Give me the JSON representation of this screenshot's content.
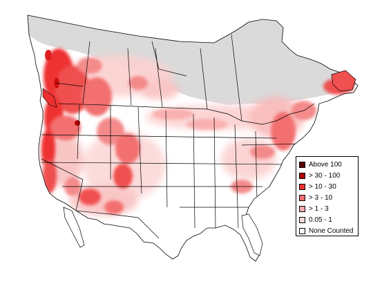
{
  "map": {
    "colors": {
      "ocean": "#ffffff",
      "land": "#ffffff",
      "no_data_north": "#dadada",
      "borders": "#000000"
    }
  },
  "legend": {
    "items": [
      {
        "label": "Above 100",
        "color": "#5a0000"
      },
      {
        "label": "> 30 - 100",
        "color": "#b00000"
      },
      {
        "label": "> 10 - 30",
        "color": "#ee3030"
      },
      {
        "label": "> 3 - 10",
        "color": "#f37070"
      },
      {
        "label": "> 1 - 3",
        "color": "#f8aaaa"
      },
      {
        "label": "0.05 - 1",
        "color": "#fcd8d8"
      },
      {
        "label": "None Counted",
        "color": "#ffffff"
      }
    ]
  }
}
